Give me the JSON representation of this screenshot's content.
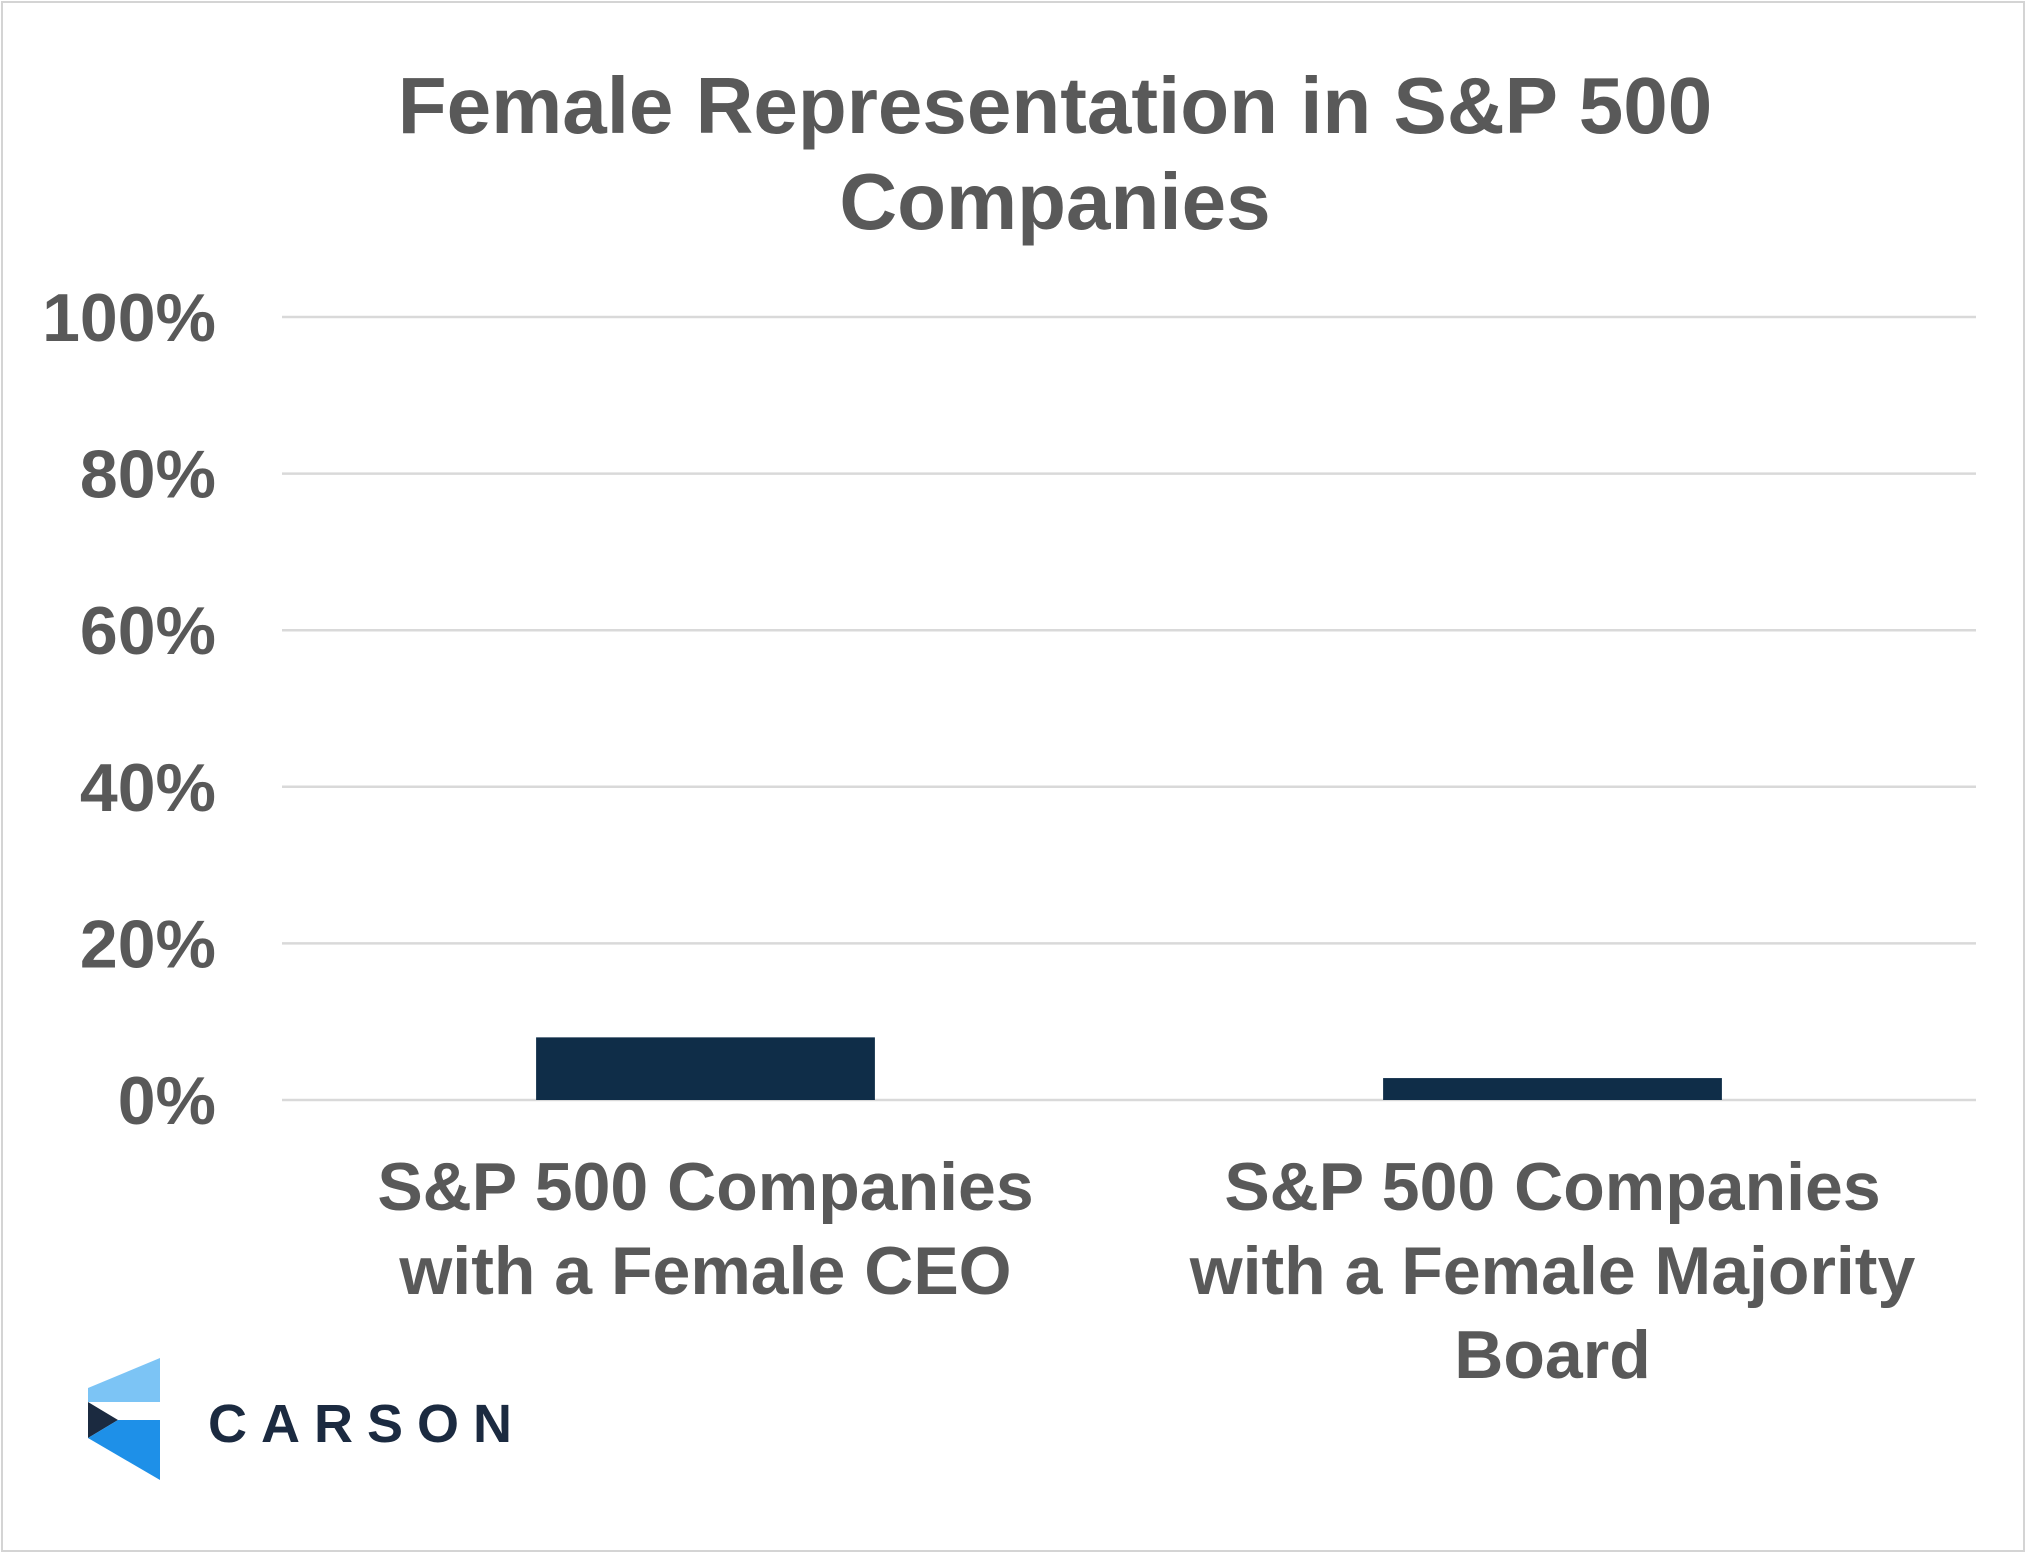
{
  "chart_data": {
    "type": "bar",
    "title": "Female Representation in S&P 500 Companies",
    "categories": [
      [
        "S&P 500 Companies",
        "with a Female CEO"
      ],
      [
        "S&P 500 Companies",
        "with a Female Majority",
        "Board"
      ]
    ],
    "series": [
      {
        "values": [
          8,
          2.8
        ]
      }
    ],
    "yticks": [
      "0%",
      "20%",
      "40%",
      "60%",
      "80%",
      "100%"
    ],
    "ylim": [
      0,
      100
    ],
    "grid": true,
    "bar_color": "#0f2d48",
    "grid_color": "#d9d9d9",
    "text_color": "#595959"
  },
  "logo": {
    "text": "CARSON",
    "colors": {
      "light": "#7cc4f5",
      "mid": "#1e90e8",
      "dark": "#1b2a40"
    }
  }
}
